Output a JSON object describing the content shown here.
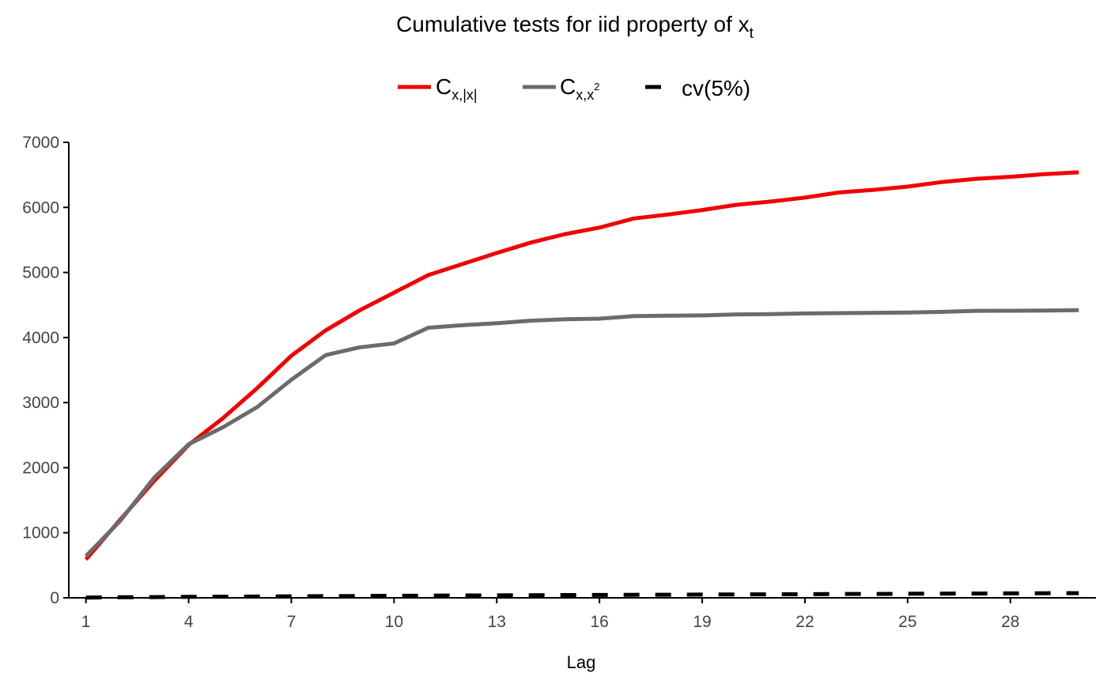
{
  "chart_data": {
    "type": "line",
    "title": {
      "main": "Cumulative tests for iid property of x",
      "subscript": "t"
    },
    "xlabel": "Lag",
    "ylabel": "",
    "xlim": [
      0.5,
      30.5
    ],
    "ylim": [
      0,
      7000
    ],
    "x_ticks": [
      1,
      4,
      7,
      10,
      13,
      16,
      19,
      22,
      25,
      28
    ],
    "y_ticks": [
      0,
      1000,
      2000,
      3000,
      4000,
      5000,
      6000,
      7000
    ],
    "grid": false,
    "legend_position": "top",
    "x": [
      1,
      2,
      3,
      4,
      5,
      6,
      7,
      8,
      9,
      10,
      11,
      12,
      13,
      14,
      15,
      16,
      17,
      18,
      19,
      20,
      21,
      22,
      23,
      24,
      25,
      26,
      27,
      28,
      29,
      30
    ],
    "series": [
      {
        "name": "C",
        "name_subscript": "x,|x|",
        "color": "#f20000",
        "style": "solid",
        "values": [
          590,
          1200,
          1800,
          2350,
          2760,
          3220,
          3720,
          4110,
          4420,
          4690,
          4960,
          5130,
          5300,
          5460,
          5590,
          5690,
          5830,
          5890,
          5960,
          6040,
          6090,
          6150,
          6230,
          6270,
          6320,
          6390,
          6440,
          6470,
          6510,
          6540
        ]
      },
      {
        "name": "C",
        "name_subscript": "x,x",
        "name_superscript": "2",
        "color": "#6b6b6b",
        "style": "solid",
        "values": [
          640,
          1180,
          1850,
          2360,
          2620,
          2930,
          3350,
          3730,
          3850,
          3910,
          4150,
          4190,
          4220,
          4260,
          4280,
          4290,
          4330,
          4335,
          4340,
          4355,
          4360,
          4370,
          4375,
          4380,
          4385,
          4395,
          4410,
          4412,
          4415,
          4420
        ]
      },
      {
        "name": "cv(5%)",
        "color": "#000000",
        "style": "dashed",
        "values": [
          4,
          8,
          11,
          14,
          17,
          20,
          23,
          26,
          28,
          31,
          33,
          36,
          38,
          40,
          42,
          44,
          46,
          48,
          50,
          52,
          54,
          56,
          58,
          60,
          62,
          64,
          66,
          68,
          70,
          72
        ]
      }
    ]
  }
}
